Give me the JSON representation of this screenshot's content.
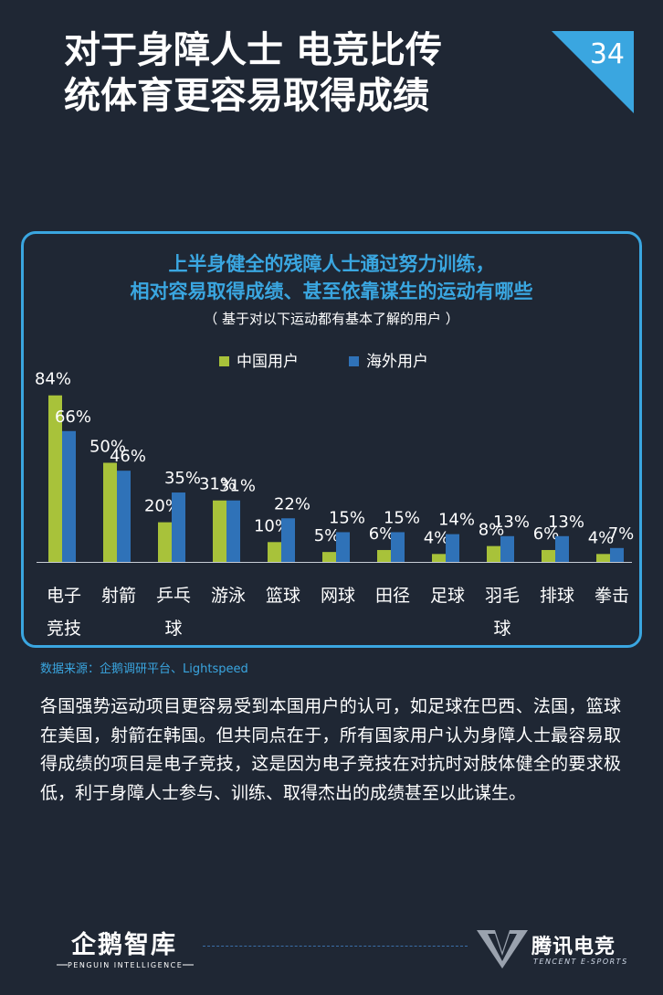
{
  "page": {
    "title_lines": [
      "对于身障人士 电竞比传",
      "统体育更容易取得成绩"
    ],
    "page_number": "34"
  },
  "chart_panel": {
    "title_line1": "上半身健全的残障人士通过努力训练，",
    "title_line2": "相对容易取得成绩、甚至依靠谋生的运动有哪些",
    "subtitle": "（ 基于对以下运动都有基本了解的用户 ）"
  },
  "chart_data": {
    "type": "bar",
    "title": "",
    "xlabel": "",
    "ylabel": "",
    "ylim": [
      0,
      100
    ],
    "grid": false,
    "legend_position": "top",
    "categories": [
      "电子竞技",
      "射箭",
      "乒乓球",
      "游泳",
      "篮球",
      "网球",
      "田径",
      "足球",
      "羽毛球",
      "排球",
      "拳击"
    ],
    "category_label_lines": [
      [
        "电子",
        "竞技"
      ],
      [
        "射箭"
      ],
      [
        "乒乓",
        "球"
      ],
      [
        "游泳"
      ],
      [
        "篮球"
      ],
      [
        "网球"
      ],
      [
        "田径"
      ],
      [
        "足球"
      ],
      [
        "羽毛",
        "球"
      ],
      [
        "排球"
      ],
      [
        "拳击"
      ]
    ],
    "series": [
      {
        "name": "中国用户",
        "color": "#a8c23a",
        "values": [
          84,
          50,
          20,
          31,
          10,
          5,
          6,
          4,
          8,
          6,
          4
        ]
      },
      {
        "name": "海外用户",
        "color": "#2f72b8",
        "values": [
          66,
          46,
          35,
          31,
          22,
          15,
          15,
          14,
          13,
          13,
          7
        ]
      }
    ],
    "value_suffix": "%"
  },
  "source_note": "数据来源：企鹅调研平台、Lightspeed",
  "body_text": "各国强势运动项目更容易受到本国用户的认可，如足球在巴西、法国，篮球在美国，射箭在韩国。但共同点在于，所有国家用户认为身障人士最容易取得成绩的项目是电子竞技，这是因为电子竞技在对抗时对肢体健全的要求极低，利于身障人士参与、训练、取得杰出的成绩甚至以此谋生。",
  "footer": {
    "left_logo_text": "企鹅智库",
    "left_logo_sub": "PENGUIN INTELLIGENCE",
    "right_logo_text": "腾讯电竞",
    "right_logo_sub": "TENCENT E-SPORTS"
  },
  "colors": {
    "background": "#1f2734",
    "accent_blue": "#3aa6e0",
    "china_green": "#a8c23a",
    "overseas_blue": "#2f72b8"
  }
}
